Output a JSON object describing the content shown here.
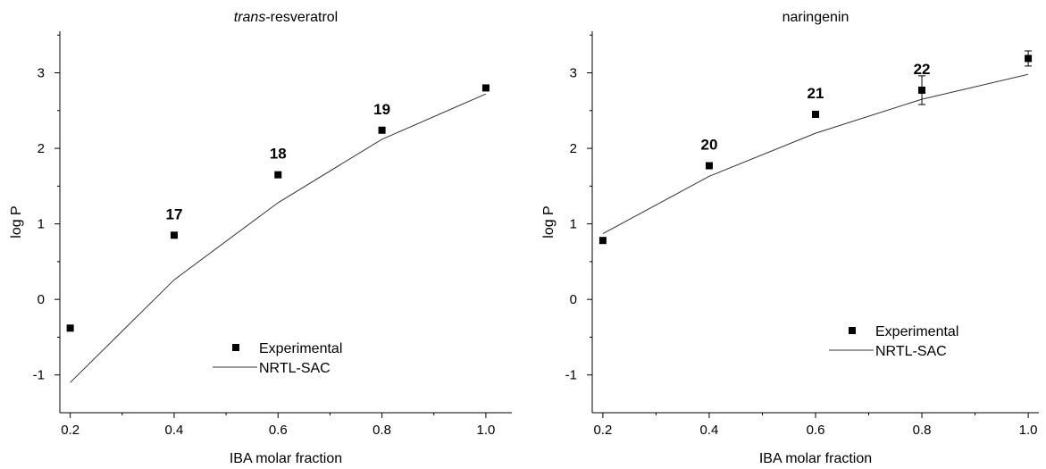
{
  "chart_data": [
    {
      "type": "scatter",
      "title": "trans-resveratrol",
      "title_parts": [
        "trans",
        "-resveratrol"
      ],
      "xlabel": "IBA molar fraction",
      "ylabel": "log P",
      "xlim": [
        0.18,
        1.05
      ],
      "ylim": [
        -1.5,
        3.55
      ],
      "xticks": [
        0.2,
        0.4,
        0.6,
        0.8,
        1.0
      ],
      "xtick_labels": [
        "0.2",
        "0.4",
        "0.6",
        "0.8",
        "1.0"
      ],
      "yticks": [
        -1,
        0,
        1,
        2,
        3
      ],
      "ytick_labels": [
        "-1",
        "0",
        "1",
        "2",
        "3"
      ],
      "legend_position": "bottom-center",
      "series": [
        {
          "name": "Experimental",
          "kind": "marker",
          "x": [
            0.2,
            0.4,
            0.6,
            0.8,
            1.0
          ],
          "y": [
            -0.38,
            0.85,
            1.65,
            2.24,
            2.8
          ],
          "error": [
            0,
            0,
            0,
            0,
            0
          ],
          "point_labels": [
            "",
            "17",
            "18",
            "19",
            ""
          ]
        },
        {
          "name": "NRTL-SAC",
          "kind": "line",
          "x": [
            0.2,
            0.4,
            0.6,
            0.8,
            1.0
          ],
          "y": [
            -1.1,
            0.26,
            1.28,
            2.12,
            2.72
          ]
        }
      ]
    },
    {
      "type": "scatter",
      "title": "naringenin",
      "title_parts": [
        "",
        "naringenin"
      ],
      "xlabel": "IBA molar fraction",
      "ylabel": "log P",
      "xlim": [
        0.18,
        1.02
      ],
      "ylim": [
        -1.5,
        3.55
      ],
      "xticks": [
        0.2,
        0.4,
        0.6,
        0.8,
        1.0
      ],
      "xtick_labels": [
        "0.2",
        "0.4",
        "0.6",
        "0.8",
        "1.0"
      ],
      "yticks": [
        -1,
        0,
        1,
        2,
        3
      ],
      "ytick_labels": [
        "-1",
        "0",
        "1",
        "2",
        "3"
      ],
      "legend_position": "bottom-center",
      "series": [
        {
          "name": "Experimental",
          "kind": "marker",
          "x": [
            0.2,
            0.4,
            0.6,
            0.8,
            1.0
          ],
          "y": [
            0.78,
            1.77,
            2.45,
            2.77,
            3.19
          ],
          "error": [
            0,
            0,
            0,
            0.19,
            0.1
          ],
          "point_labels": [
            "",
            "20",
            "21",
            "22",
            ""
          ]
        },
        {
          "name": "NRTL-SAC",
          "kind": "line",
          "x": [
            0.2,
            0.4,
            0.6,
            0.8,
            1.0
          ],
          "y": [
            0.87,
            1.63,
            2.2,
            2.65,
            2.98
          ]
        }
      ]
    }
  ]
}
